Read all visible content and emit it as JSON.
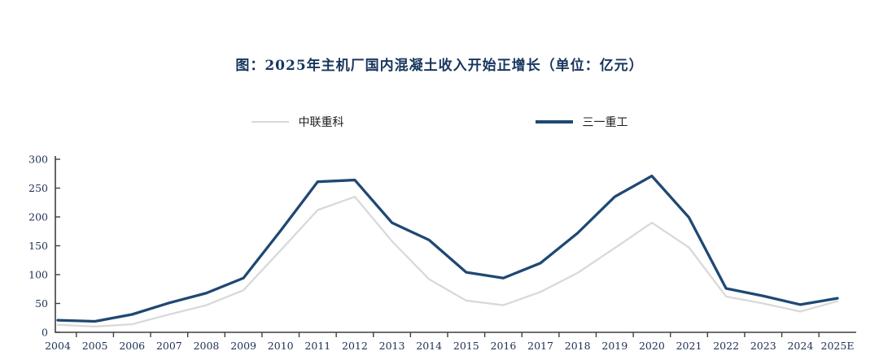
{
  "title": "图：2025年主机厂国内混凝土收入开始正增长（单位：亿元）",
  "colors": {
    "sany_line": "#1f4873",
    "zoomlion_line": "#d9d9d9",
    "axis": "#3f3f3f",
    "tick_text": "#1f3055",
    "title_text": "#17365d"
  },
  "chart_data": {
    "type": "line",
    "title": "图：2025年主机厂国内混凝土收入开始正增长（单位：亿元）",
    "unit": "亿元",
    "categories": [
      "2004",
      "2005",
      "2006",
      "2007",
      "2008",
      "2009",
      "2010",
      "2011",
      "2012",
      "2013",
      "2014",
      "2015",
      "2016",
      "2017",
      "2018",
      "2019",
      "2020",
      "2021",
      "2022",
      "2023",
      "2024",
      "2025E"
    ],
    "series": [
      {
        "name": "中联重科",
        "color": "#d9d9d9",
        "values": [
          13,
          10,
          14,
          31,
          47,
          73,
          142,
          212,
          235,
          158,
          92,
          55,
          47,
          70,
          103,
          146,
          190,
          147,
          62,
          50,
          36,
          54
        ]
      },
      {
        "name": "三一重工",
        "color": "#1f4873",
        "values": [
          21,
          19,
          31,
          51,
          68,
          94,
          176,
          261,
          264,
          190,
          160,
          104,
          94,
          120,
          172,
          235,
          271,
          199,
          76,
          63,
          48,
          59
        ]
      }
    ],
    "ylim": [
      0,
      300
    ],
    "yticks": [
      0,
      50,
      100,
      150,
      200,
      250,
      300
    ],
    "grid": false,
    "legend_position": "top"
  }
}
